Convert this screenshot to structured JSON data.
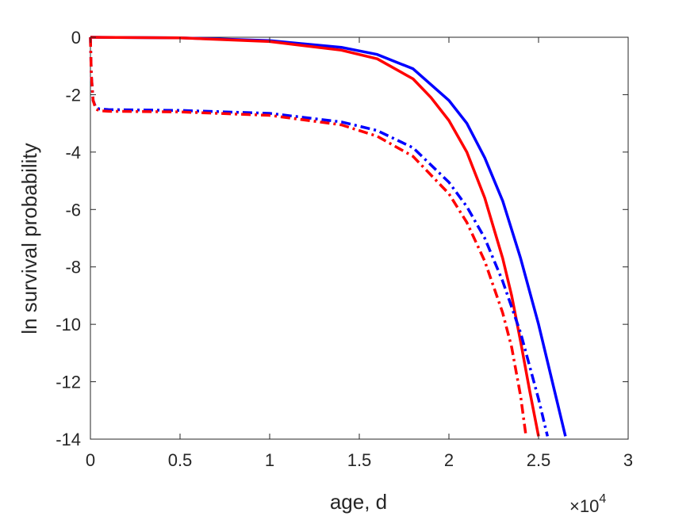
{
  "chart_data": {
    "type": "line",
    "title": "",
    "xlabel": "age, d",
    "ylabel": "ln survival probability",
    "x_exponent_label": "×10",
    "x_exponent_power": "4",
    "x_scale_factor": 10000,
    "xlim": [
      0,
      30000
    ],
    "ylim": [
      -14,
      0
    ],
    "x_ticks": [
      0,
      5000,
      10000,
      15000,
      20000,
      25000,
      30000
    ],
    "x_tick_labels": [
      "0",
      "0.5",
      "1",
      "1.5",
      "2",
      "2.5",
      "3"
    ],
    "y_ticks": [
      0,
      -2,
      -4,
      -6,
      -8,
      -10,
      -12,
      -14
    ],
    "y_tick_labels": [
      "0",
      "-2",
      "-4",
      "-6",
      "-8",
      "-10",
      "-12",
      "-14"
    ],
    "grid": false,
    "legend": "none",
    "series": [
      {
        "color": "#0000ff",
        "style": "solid",
        "x": [
          0,
          5000,
          10000,
          14000,
          16000,
          18000,
          20000,
          21000,
          22000,
          23000,
          24000,
          25000,
          26000,
          26500
        ],
        "y": [
          0,
          -0.02,
          -0.12,
          -0.35,
          -0.6,
          -1.1,
          -2.2,
          -3.0,
          -4.2,
          -5.7,
          -7.7,
          -10.0,
          -12.6,
          -13.9
        ]
      },
      {
        "color": "#ff0000",
        "style": "solid",
        "x": [
          0,
          5000,
          10000,
          14000,
          16000,
          18000,
          19000,
          20000,
          21000,
          22000,
          23000,
          23500,
          24000,
          24500,
          25000
        ],
        "y": [
          0,
          -0.02,
          -0.15,
          -0.45,
          -0.75,
          -1.45,
          -2.1,
          -2.9,
          -4.0,
          -5.6,
          -7.7,
          -9.0,
          -10.6,
          -12.3,
          -13.9
        ]
      },
      {
        "color": "#0000ff",
        "style": "dashdot",
        "x": [
          0,
          50,
          150,
          300,
          500,
          1000,
          5000,
          10000,
          14000,
          16000,
          18000,
          20000,
          21000,
          22000,
          23000,
          24000,
          25000,
          25500
        ],
        "y": [
          0,
          -1.3,
          -2.2,
          -2.45,
          -2.5,
          -2.52,
          -2.55,
          -2.65,
          -2.95,
          -3.25,
          -3.85,
          -5.05,
          -5.9,
          -7.0,
          -8.5,
          -10.3,
          -12.6,
          -13.9
        ]
      },
      {
        "color": "#ff0000",
        "style": "dashdot",
        "x": [
          0,
          50,
          150,
          300,
          500,
          1000,
          5000,
          10000,
          14000,
          16000,
          18000,
          20000,
          21000,
          22000,
          23000,
          23500,
          24000,
          24300
        ],
        "y": [
          0,
          -1.3,
          -2.2,
          -2.5,
          -2.56,
          -2.58,
          -2.6,
          -2.72,
          -3.05,
          -3.45,
          -4.15,
          -5.45,
          -6.45,
          -7.8,
          -9.6,
          -10.8,
          -12.5,
          -13.9
        ]
      }
    ]
  }
}
